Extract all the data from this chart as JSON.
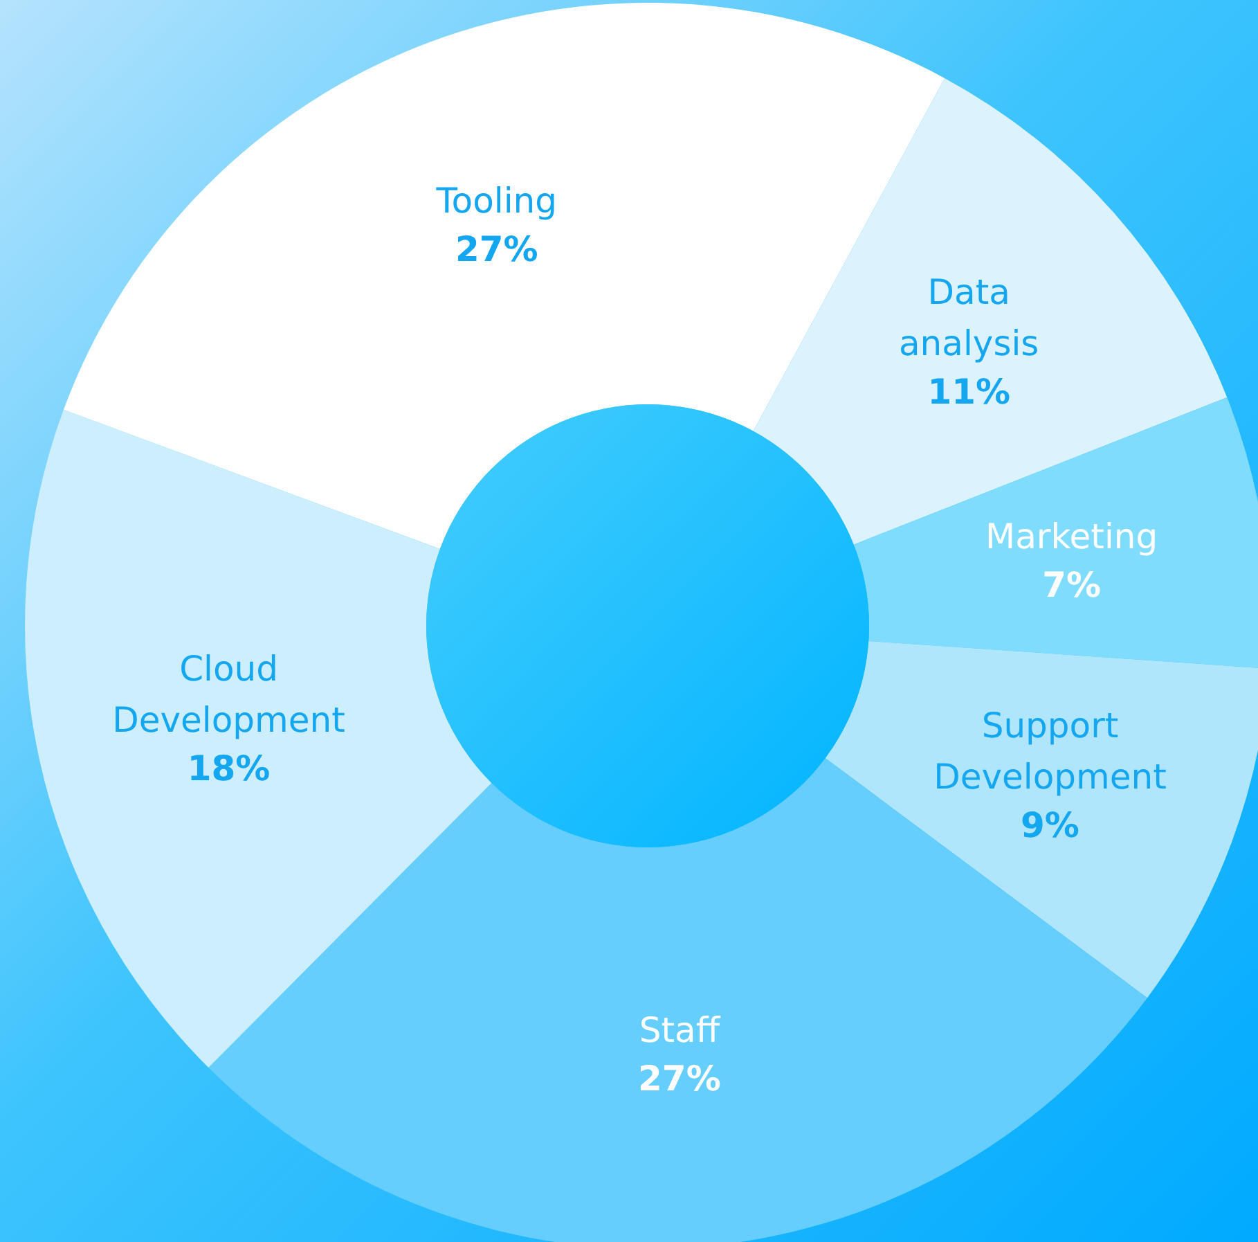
{
  "chart_data": {
    "type": "donut",
    "categories": [
      "Tooling",
      "Data analysis",
      "Marketing",
      "Support Development",
      "Staff",
      "Cloud Development"
    ],
    "values": [
      27,
      11,
      7,
      9,
      27,
      18
    ],
    "colors": [
      "#ffffff",
      "#dcf3fd",
      "#7fdcfc",
      "#b0e6fc",
      "#66cefc",
      "#cdeefc"
    ],
    "value_labels": [
      "27%",
      "11%",
      "7%",
      "9%",
      "27%",
      "18%"
    ]
  }
}
